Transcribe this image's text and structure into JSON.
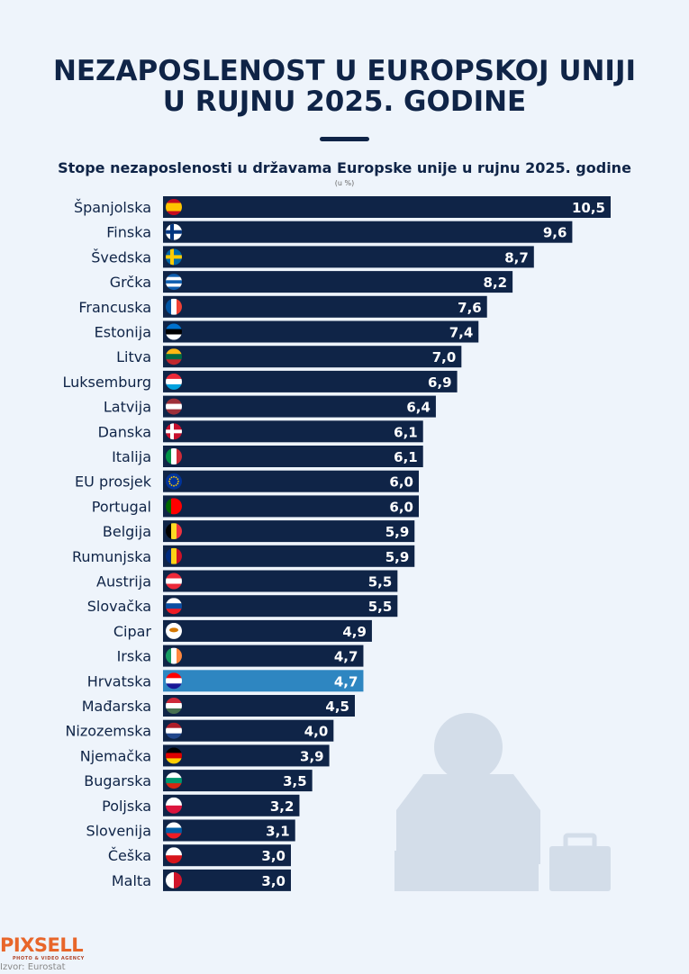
{
  "title_line1": "NEZAPOSLENOST U EUROPSKOJ UNIJI",
  "title_line2": "U RUJNU 2025. GODINE",
  "brand": "PIXSELL",
  "brand_tagline": "PHOTO & VIDEO AGENCY",
  "source": "Izvor: Eurostat",
  "colors": {
    "bar": "#0f2447",
    "highlight": "#2e86c1",
    "background": "#eef4fb"
  },
  "chart_data": {
    "type": "bar",
    "orientation": "horizontal",
    "title": "Stope nezaposlenosti u državama Europske unije u rujnu 2025. godine",
    "unit_label": "(u %)",
    "xlim": [
      0,
      10.5
    ],
    "highlight": "Hrvatska",
    "categories": [
      "Španjolska",
      "Finska",
      "Švedska",
      "Grčka",
      "Francuska",
      "Estonija",
      "Litva",
      "Luksemburg",
      "Latvija",
      "Danska",
      "Italija",
      "EU prosjek",
      "Portugal",
      "Belgija",
      "Rumunjska",
      "Austrija",
      "Slovačka",
      "Cipar",
      "Irska",
      "Hrvatska",
      "Mađarska",
      "Nizozemska",
      "Njemačka",
      "Bugarska",
      "Poljska",
      "Slovenija",
      "Češka",
      "Malta"
    ],
    "values": [
      10.5,
      9.6,
      8.7,
      8.2,
      7.6,
      7.4,
      7.0,
      6.9,
      6.4,
      6.1,
      6.1,
      6.0,
      6.0,
      5.9,
      5.9,
      5.5,
      5.5,
      4.9,
      4.7,
      4.7,
      4.5,
      4.0,
      3.9,
      3.5,
      3.2,
      3.1,
      3.0,
      3.0
    ],
    "value_labels": [
      "10,5",
      "9,6",
      "8,7",
      "8,2",
      "7,6",
      "7,4",
      "7,0",
      "6,9",
      "6,4",
      "6,1",
      "6,1",
      "6,0",
      "6,0",
      "5,9",
      "5,9",
      "5,5",
      "5,5",
      "4,9",
      "4,7",
      "4,7",
      "4,5",
      "4,0",
      "3,9",
      "3,5",
      "3,2",
      "3,1",
      "3,0",
      "3,0"
    ]
  }
}
